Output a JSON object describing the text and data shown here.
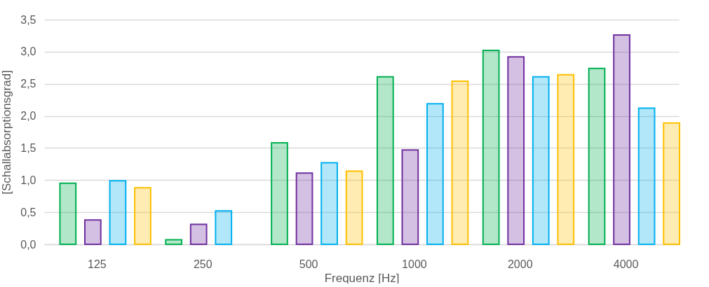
{
  "chart_data": {
    "type": "bar",
    "xlabel": "Frequenz [Hz]",
    "ylabel": "[Schallabsorptionsgrad]",
    "categories": [
      "125",
      "250",
      "500",
      "1000",
      "2000",
      "4000"
    ],
    "series": [
      {
        "color": "#00b050",
        "values": [
          0.95,
          0.07,
          1.58,
          2.61,
          3.02,
          2.74
        ]
      },
      {
        "color": "#7030a0",
        "values": [
          0.38,
          0.31,
          1.11,
          1.47,
          2.92,
          3.26
        ]
      },
      {
        "color": "#00b0f0",
        "values": [
          0.99,
          0.52,
          1.27,
          2.19,
          2.61,
          2.12
        ]
      },
      {
        "color": "#ffc000",
        "values": [
          0.88,
          null,
          1.14,
          2.54,
          2.64,
          1.89
        ]
      }
    ],
    "ylim": [
      0,
      3.5
    ],
    "yticks": [
      {
        "value": 0,
        "label": "0,0"
      },
      {
        "value": 0.5,
        "label": "0,5"
      },
      {
        "value": 1,
        "label": "1,0"
      },
      {
        "value": 1.5,
        "label": "1,5"
      },
      {
        "value": 2,
        "label": "2,0"
      },
      {
        "value": 2.5,
        "label": "2,5"
      },
      {
        "value": 3,
        "label": "3,0"
      },
      {
        "value": 3.5,
        "label": "3,5"
      }
    ],
    "grid": "y",
    "legend": false
  }
}
